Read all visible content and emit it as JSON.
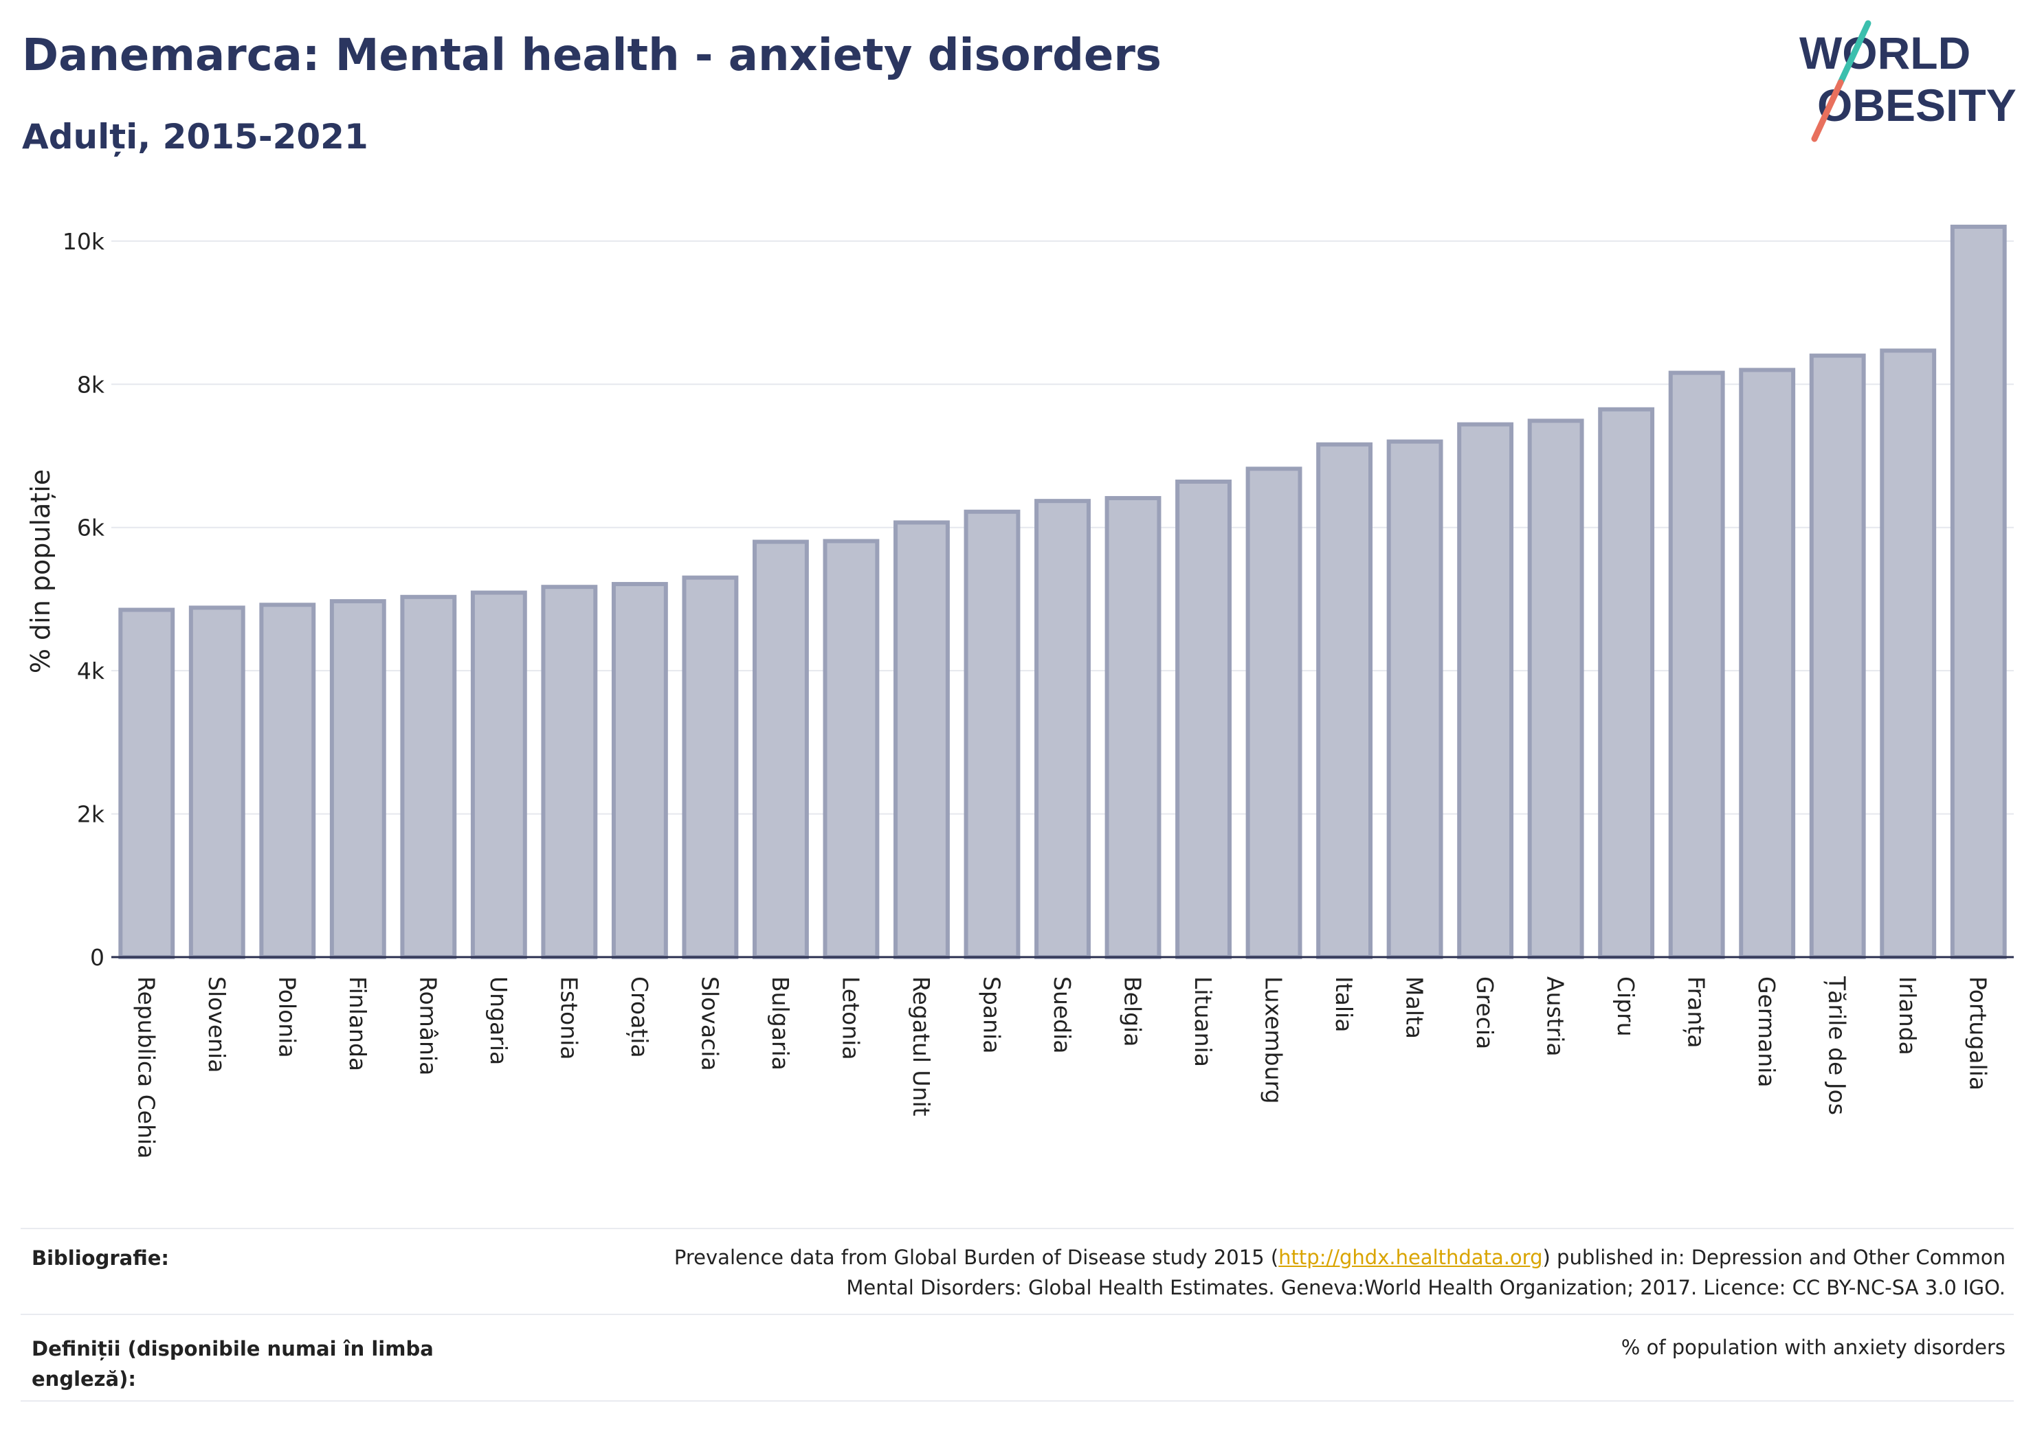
{
  "header": {
    "title": "Danemarca: Mental health - anxiety disorders",
    "subtitle": "Adulți, 2015-2021"
  },
  "logo": {
    "line1": "WORLD",
    "line2": "OBESITY",
    "colors": {
      "text": "#2b3660",
      "slash_top": "#3bbfad",
      "slash_bottom": "#e8705d"
    }
  },
  "chart_data": {
    "type": "bar",
    "ylabel": "% din populație",
    "ylim": [
      0,
      10200
    ],
    "yticks": [
      0,
      2000,
      4000,
      6000,
      8000,
      10000
    ],
    "ytick_labels": [
      "0",
      "2k",
      "4k",
      "6k",
      "8k",
      "10k"
    ],
    "grid": true,
    "bar_fill": "#bcc0cf",
    "bar_stroke": "#9aa0b8",
    "categories": [
      "Republica Cehia",
      "Slovenia",
      "Polonia",
      "Finlanda",
      "România",
      "Ungaria",
      "Estonia",
      "Croația",
      "Slovacia",
      "Bulgaria",
      "Letonia",
      "Regatul Unit",
      "Spania",
      "Suedia",
      "Belgia",
      "Lituania",
      "Luxemburg",
      "Italia",
      "Malta",
      "Grecia",
      "Austria",
      "Cipru",
      "Franța",
      "Germania",
      "Țările de Jos",
      "Irlanda",
      "Portugalia"
    ],
    "values": [
      4850,
      4880,
      4920,
      4970,
      5030,
      5090,
      5170,
      5210,
      5300,
      5800,
      5810,
      6070,
      6220,
      6370,
      6410,
      6640,
      6820,
      7160,
      7200,
      7440,
      7490,
      7650,
      8160,
      8200,
      8400,
      8470,
      10200
    ]
  },
  "footer": {
    "bibliography_label": "Bibliografie:",
    "bibliography_text_before": "Prevalence data from Global Burden of Disease study 2015 (",
    "bibliography_link": "http://ghdx.healthdata.org",
    "bibliography_text_after": ") published in: Depression and Other Common",
    "bibliography_line2": "Mental Disorders: Global Health Estimates. Geneva:World Health Organization; 2017. Licence: CC BY-NC-SA 3.0 IGO.",
    "definitions_label_line1": "Definiții (disponibile numai în limba",
    "definitions_label_line2": "engleză):",
    "definitions_text": "% of population with anxiety disorders"
  }
}
